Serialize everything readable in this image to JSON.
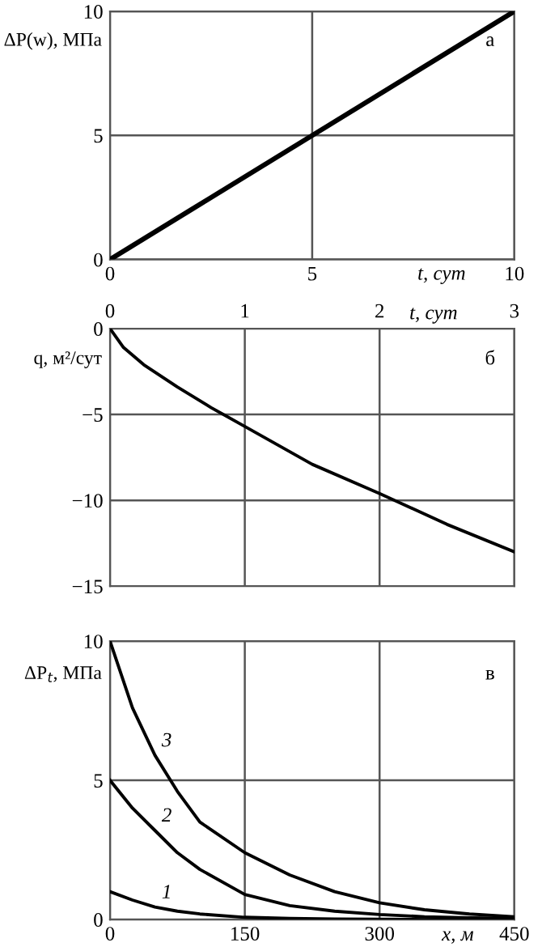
{
  "chart_data": [
    {
      "type": "line",
      "xlabel": "t, сут",
      "ylabel": "ΔP(w), МПа",
      "annotations": [
        "а"
      ],
      "x": [
        0,
        10
      ],
      "series": [
        {
          "color": "#000000",
          "values": [
            0,
            10
          ]
        }
      ],
      "xlim": [
        0,
        10
      ],
      "xticks": [
        0,
        5,
        10
      ],
      "ylim": [
        0,
        10
      ],
      "yticks": [
        0,
        5,
        10
      ],
      "grid": true,
      "line_style": "solid"
    },
    {
      "type": "line",
      "xlabel": "t, сут",
      "ylabel": "q, м²/сут",
      "annotations": [
        "б"
      ],
      "x": [
        0,
        0.1,
        0.25,
        0.5,
        0.75,
        1,
        1.5,
        2,
        2.5,
        3
      ],
      "series": [
        {
          "color": "#000000",
          "values": [
            0,
            -1.1,
            -2.1,
            -3.4,
            -4.6,
            -5.7,
            -7.9,
            -9.6,
            -11.4,
            -13.0
          ]
        }
      ],
      "xlim": [
        0,
        3
      ],
      "xticks": [
        0,
        1,
        2,
        3
      ],
      "ylim": [
        -15,
        0
      ],
      "yticks": [
        {
          "value": -15,
          "label": "−15"
        },
        {
          "value": -10,
          "label": "−10"
        },
        {
          "value": -5,
          "label": "−5"
        },
        0
      ],
      "grid": true,
      "line_style": "solid"
    },
    {
      "type": "line",
      "xlabel": "x, м",
      "ylabel": "ΔP$_{t}$, МПа",
      "x": [
        0,
        25,
        50,
        75,
        100,
        150,
        200,
        250,
        300,
        350,
        400,
        450
      ],
      "annotations": [
        "в"
      ],
      "series": [
        {
          "name": "1",
          "color": "#000000",
          "values": [
            1,
            0.7,
            0.45,
            0.3,
            0.2,
            0.08,
            0.04,
            0.02,
            0.01,
            0,
            0,
            0
          ]
        },
        {
          "name": "2",
          "color": "#000000",
          "values": [
            5,
            4.0,
            3.2,
            2.4,
            1.8,
            0.9,
            0.5,
            0.3,
            0.18,
            0.1,
            0.06,
            0.04
          ]
        },
        {
          "name": "3",
          "color": "#000000",
          "values": [
            10,
            7.6,
            5.9,
            4.6,
            3.5,
            2.4,
            1.6,
            1.0,
            0.6,
            0.35,
            0.2,
            0.1
          ]
        }
      ],
      "xlim": [
        0,
        450
      ],
      "xticks": [
        0,
        150,
        300,
        450
      ],
      "ylim": [
        0,
        10
      ],
      "yticks": [
        0,
        5,
        10
      ],
      "grid": true,
      "line_style": "solid"
    }
  ]
}
